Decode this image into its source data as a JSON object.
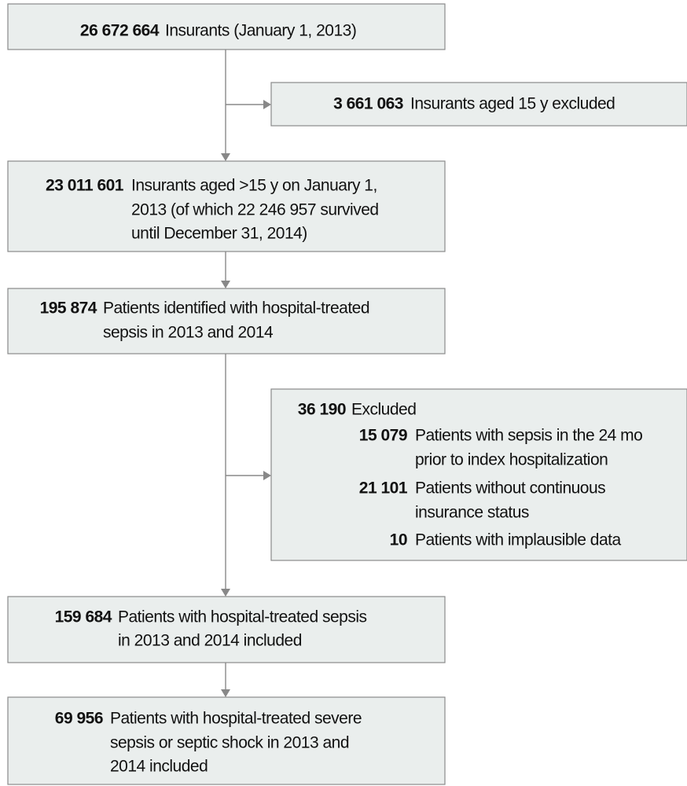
{
  "nodes": [
    {
      "count": "26 672 664",
      "lines": [
        "Insurants (January 1, 2013)"
      ]
    },
    {
      "count": "3 661 063",
      "lines": [
        "Insurants aged 15 y excluded"
      ]
    },
    {
      "count": "23 011 601",
      "lines": [
        "Insurants aged >15 y on January 1,",
        "2013 (of which 22 246 957 survived",
        "until December 31, 2014)"
      ]
    },
    {
      "count": "195 874",
      "lines": [
        "Patients identified with hospital-treated",
        "sepsis in 2013 and 2014"
      ]
    },
    {
      "count": "36 190",
      "lines": [
        "Excluded"
      ],
      "items": [
        {
          "count": "15 079",
          "lines": [
            "Patients with sepsis in the 24 mo",
            "prior to index hospitalization"
          ]
        },
        {
          "count": "21 101",
          "lines": [
            "Patients without continuous",
            "insurance status"
          ]
        },
        {
          "count": "10",
          "lines": [
            "Patients with implausible data"
          ]
        }
      ]
    },
    {
      "count": "159 684",
      "lines": [
        "Patients with hospital-treated sepsis",
        "in 2013 and 2014 included"
      ]
    },
    {
      "count": "69 956",
      "lines": [
        "Patients with hospital-treated severe",
        "sepsis or septic shock in 2013 and",
        "2014 included"
      ]
    }
  ]
}
